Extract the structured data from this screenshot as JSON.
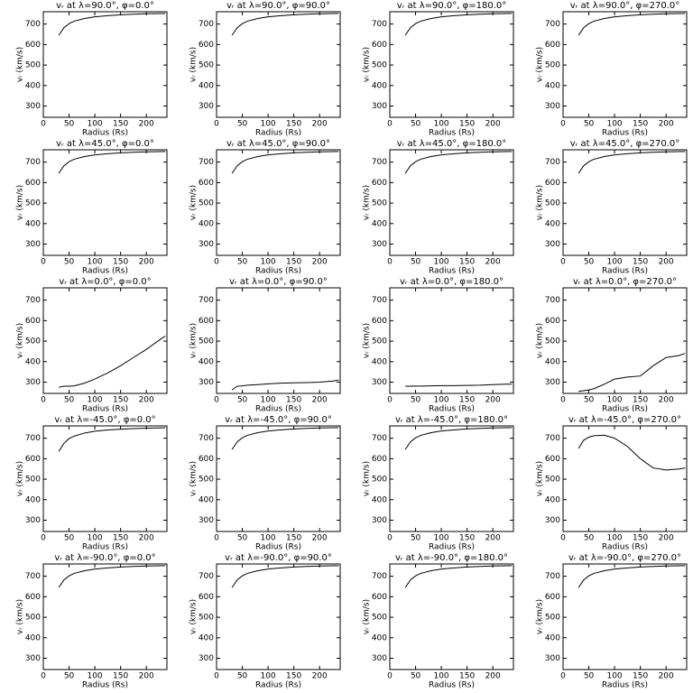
{
  "chart_data": [
    {
      "type": "line",
      "title": "vᵣ at λ=90.0°, φ=0.0°",
      "x_label": "Radius (Rs)",
      "y_label": "vᵣ (km/s)",
      "x": [
        30,
        40,
        50,
        60,
        80,
        100,
        125,
        150,
        175,
        200,
        225,
        237
      ],
      "series": [
        {
          "color": "#000000",
          "values": [
            645,
            682,
            702,
            714,
            727,
            735,
            741,
            745,
            748,
            750,
            751,
            752
          ]
        }
      ],
      "xlim": [
        0,
        240
      ],
      "ylim": [
        245,
        760
      ],
      "xticks": [
        0,
        50,
        100,
        150,
        200
      ],
      "yticks": [
        300,
        400,
        500,
        600,
        700
      ]
    },
    {
      "type": "line",
      "title": "vᵣ at λ=90.0°, φ=90.0°",
      "x_label": "Radius (Rs)",
      "y_label": "vᵣ (km/s)",
      "x": [
        30,
        40,
        50,
        60,
        80,
        100,
        125,
        150,
        175,
        200,
        225,
        237
      ],
      "series": [
        {
          "color": "#000000",
          "values": [
            645,
            682,
            702,
            714,
            727,
            735,
            741,
            745,
            748,
            750,
            751,
            752
          ]
        }
      ],
      "xlim": [
        0,
        240
      ],
      "ylim": [
        245,
        760
      ],
      "xticks": [
        0,
        50,
        100,
        150,
        200
      ],
      "yticks": [
        300,
        400,
        500,
        600,
        700
      ]
    },
    {
      "type": "line",
      "title": "vᵣ at λ=90.0°, φ=180.0°",
      "x_label": "Radius (Rs)",
      "y_label": "vᵣ (km/s)",
      "x": [
        30,
        40,
        50,
        60,
        80,
        100,
        125,
        150,
        175,
        200,
        225,
        237
      ],
      "series": [
        {
          "color": "#000000",
          "values": [
            645,
            682,
            702,
            714,
            727,
            735,
            741,
            745,
            748,
            750,
            751,
            752
          ]
        }
      ],
      "xlim": [
        0,
        240
      ],
      "ylim": [
        245,
        760
      ],
      "xticks": [
        0,
        50,
        100,
        150,
        200
      ],
      "yticks": [
        300,
        400,
        500,
        600,
        700
      ]
    },
    {
      "type": "line",
      "title": "vᵣ at λ=90.0°, φ=270.0°",
      "x_label": "Radius (Rs)",
      "y_label": "vᵣ (km/s)",
      "x": [
        30,
        40,
        50,
        60,
        80,
        100,
        125,
        150,
        175,
        200,
        225,
        237
      ],
      "series": [
        {
          "color": "#000000",
          "values": [
            645,
            682,
            702,
            714,
            727,
            735,
            741,
            745,
            748,
            750,
            751,
            752
          ]
        }
      ],
      "xlim": [
        0,
        240
      ],
      "ylim": [
        245,
        760
      ],
      "xticks": [
        0,
        50,
        100,
        150,
        200
      ],
      "yticks": [
        300,
        400,
        500,
        600,
        700
      ]
    },
    {
      "type": "line",
      "title": "vᵣ at λ=45.0°, φ=0.0°",
      "x_label": "Radius (Rs)",
      "y_label": "vᵣ (km/s)",
      "x": [
        30,
        40,
        50,
        60,
        80,
        100,
        125,
        150,
        175,
        200,
        225,
        237
      ],
      "series": [
        {
          "color": "#000000",
          "values": [
            645,
            682,
            702,
            714,
            727,
            735,
            741,
            745,
            748,
            750,
            751,
            752
          ]
        }
      ],
      "xlim": [
        0,
        240
      ],
      "ylim": [
        245,
        760
      ],
      "xticks": [
        0,
        50,
        100,
        150,
        200
      ],
      "yticks": [
        300,
        400,
        500,
        600,
        700
      ]
    },
    {
      "type": "line",
      "title": "vᵣ at λ=45.0°, φ=90.0°",
      "x_label": "Radius (Rs)",
      "y_label": "vᵣ (km/s)",
      "x": [
        30,
        40,
        50,
        60,
        80,
        100,
        125,
        150,
        175,
        200,
        225,
        237
      ],
      "series": [
        {
          "color": "#000000",
          "values": [
            645,
            682,
            702,
            714,
            727,
            735,
            741,
            745,
            748,
            750,
            751,
            752
          ]
        }
      ],
      "xlim": [
        0,
        240
      ],
      "ylim": [
        245,
        760
      ],
      "xticks": [
        0,
        50,
        100,
        150,
        200
      ],
      "yticks": [
        300,
        400,
        500,
        600,
        700
      ]
    },
    {
      "type": "line",
      "title": "vᵣ at λ=45.0°, φ=180.0°",
      "x_label": "Radius (Rs)",
      "y_label": "vᵣ (km/s)",
      "x": [
        30,
        40,
        50,
        60,
        80,
        100,
        125,
        150,
        175,
        200,
        225,
        237
      ],
      "series": [
        {
          "color": "#000000",
          "values": [
            645,
            682,
            702,
            714,
            727,
            735,
            741,
            745,
            748,
            750,
            751,
            752
          ]
        }
      ],
      "xlim": [
        0,
        240
      ],
      "ylim": [
        245,
        760
      ],
      "xticks": [
        0,
        50,
        100,
        150,
        200
      ],
      "yticks": [
        300,
        400,
        500,
        600,
        700
      ]
    },
    {
      "type": "line",
      "title": "vᵣ at λ=45.0°, φ=270.0°",
      "x_label": "Radius (Rs)",
      "y_label": "vᵣ (km/s)",
      "x": [
        30,
        40,
        50,
        60,
        80,
        100,
        125,
        150,
        175,
        200,
        225,
        237
      ],
      "series": [
        {
          "color": "#000000",
          "values": [
            645,
            682,
            702,
            714,
            727,
            735,
            741,
            745,
            748,
            750,
            751,
            752
          ]
        }
      ],
      "xlim": [
        0,
        240
      ],
      "ylim": [
        245,
        760
      ],
      "xticks": [
        0,
        50,
        100,
        150,
        200
      ],
      "yticks": [
        300,
        400,
        500,
        600,
        700
      ]
    },
    {
      "type": "line",
      "title": "vᵣ at λ=0.0°, φ=0.0°",
      "x_label": "Radius (Rs)",
      "y_label": "vᵣ (km/s)",
      "x": [
        30,
        40,
        50,
        60,
        80,
        100,
        125,
        150,
        175,
        200,
        225,
        237
      ],
      "series": [
        {
          "color": "#000000",
          "values": [
            275,
            280,
            280,
            282,
            295,
            315,
            345,
            380,
            420,
            460,
            505,
            525
          ]
        }
      ],
      "xlim": [
        0,
        240
      ],
      "ylim": [
        245,
        760
      ],
      "xticks": [
        0,
        50,
        100,
        150,
        200
      ],
      "yticks": [
        300,
        400,
        500,
        600,
        700
      ]
    },
    {
      "type": "line",
      "title": "vᵣ at λ=0.0°, φ=90.0°",
      "x_label": "Radius (Rs)",
      "y_label": "vᵣ (km/s)",
      "x": [
        30,
        40,
        50,
        60,
        80,
        100,
        125,
        150,
        175,
        200,
        225,
        237
      ],
      "series": [
        {
          "color": "#000000",
          "values": [
            262,
            280,
            282,
            285,
            288,
            292,
            295,
            297,
            298,
            300,
            305,
            310
          ]
        }
      ],
      "xlim": [
        0,
        240
      ],
      "ylim": [
        245,
        760
      ],
      "xticks": [
        0,
        50,
        100,
        150,
        200
      ],
      "yticks": [
        300,
        400,
        500,
        600,
        700
      ]
    },
    {
      "type": "line",
      "title": "vᵣ at λ=0.0°, φ=180.0°",
      "x_label": "Radius (Rs)",
      "y_label": "vᵣ (km/s)",
      "x": [
        30,
        40,
        50,
        60,
        80,
        100,
        125,
        150,
        175,
        200,
        225,
        237
      ],
      "series": [
        {
          "color": "#000000",
          "values": [
            280,
            280,
            281,
            281,
            282,
            283,
            283,
            284,
            285,
            288,
            290,
            290
          ]
        }
      ],
      "xlim": [
        0,
        240
      ],
      "ylim": [
        245,
        760
      ],
      "xticks": [
        0,
        50,
        100,
        150,
        200
      ],
      "yticks": [
        300,
        400,
        500,
        600,
        700
      ]
    },
    {
      "type": "line",
      "title": "vᵣ at λ=0.0°, φ=270.0°",
      "x_label": "Radius (Rs)",
      "y_label": "vᵣ (km/s)",
      "x": [
        30,
        40,
        50,
        60,
        80,
        100,
        125,
        150,
        175,
        200,
        225,
        237
      ],
      "series": [
        {
          "color": "#000000",
          "values": [
            255,
            258,
            262,
            268,
            290,
            315,
            325,
            330,
            380,
            420,
            430,
            440
          ]
        }
      ],
      "xlim": [
        0,
        240
      ],
      "ylim": [
        245,
        760
      ],
      "xticks": [
        0,
        50,
        100,
        150,
        200
      ],
      "yticks": [
        300,
        400,
        500,
        600,
        700
      ]
    },
    {
      "type": "line",
      "title": "vᵣ at λ=-45.0°, φ=0.0°",
      "x_label": "Radius (Rs)",
      "y_label": "vᵣ (km/s)",
      "x": [
        30,
        40,
        50,
        60,
        80,
        100,
        125,
        150,
        175,
        200,
        225,
        237
      ],
      "series": [
        {
          "color": "#000000",
          "values": [
            635,
            675,
            698,
            710,
            725,
            734,
            740,
            744,
            747,
            749,
            750,
            751
          ]
        }
      ],
      "xlim": [
        0,
        240
      ],
      "ylim": [
        245,
        760
      ],
      "xticks": [
        0,
        50,
        100,
        150,
        200
      ],
      "yticks": [
        300,
        400,
        500,
        600,
        700
      ]
    },
    {
      "type": "line",
      "title": "vᵣ at λ=-45.0°, φ=90.0°",
      "x_label": "Radius (Rs)",
      "y_label": "vᵣ (km/s)",
      "x": [
        30,
        40,
        50,
        60,
        80,
        100,
        125,
        150,
        175,
        200,
        225,
        237
      ],
      "series": [
        {
          "color": "#000000",
          "values": [
            645,
            682,
            702,
            714,
            727,
            735,
            741,
            745,
            748,
            750,
            751,
            752
          ]
        }
      ],
      "xlim": [
        0,
        240
      ],
      "ylim": [
        245,
        760
      ],
      "xticks": [
        0,
        50,
        100,
        150,
        200
      ],
      "yticks": [
        300,
        400,
        500,
        600,
        700
      ]
    },
    {
      "type": "line",
      "title": "vᵣ at λ=-45.0°, φ=180.0°",
      "x_label": "Radius (Rs)",
      "y_label": "vᵣ (km/s)",
      "x": [
        30,
        40,
        50,
        60,
        80,
        100,
        125,
        150,
        175,
        200,
        225,
        237
      ],
      "series": [
        {
          "color": "#000000",
          "values": [
            645,
            682,
            702,
            714,
            727,
            735,
            741,
            745,
            748,
            750,
            751,
            752
          ]
        }
      ],
      "xlim": [
        0,
        240
      ],
      "ylim": [
        245,
        760
      ],
      "xticks": [
        0,
        50,
        100,
        150,
        200
      ],
      "yticks": [
        300,
        400,
        500,
        600,
        700
      ]
    },
    {
      "type": "line",
      "title": "vᵣ at λ=-45.0°, φ=270.0°",
      "x_label": "Radius (Rs)",
      "y_label": "vᵣ (km/s)",
      "x": [
        30,
        40,
        50,
        60,
        80,
        100,
        125,
        150,
        175,
        200,
        225,
        237
      ],
      "series": [
        {
          "color": "#000000",
          "values": [
            650,
            690,
            705,
            712,
            715,
            700,
            660,
            600,
            555,
            545,
            550,
            555
          ]
        }
      ],
      "xlim": [
        0,
        240
      ],
      "ylim": [
        245,
        760
      ],
      "xticks": [
        0,
        50,
        100,
        150,
        200
      ],
      "yticks": [
        300,
        400,
        500,
        600,
        700
      ]
    },
    {
      "type": "line",
      "title": "vᵣ at λ=-90.0°, φ=0.0°",
      "x_label": "Radius (Rs)",
      "y_label": "vᵣ (km/s)",
      "x": [
        30,
        40,
        50,
        60,
        80,
        100,
        125,
        150,
        175,
        200,
        225,
        237
      ],
      "series": [
        {
          "color": "#000000",
          "values": [
            645,
            682,
            702,
            714,
            727,
            735,
            741,
            745,
            748,
            750,
            751,
            752
          ]
        }
      ],
      "xlim": [
        0,
        240
      ],
      "ylim": [
        245,
        760
      ],
      "xticks": [
        0,
        50,
        100,
        150,
        200
      ],
      "yticks": [
        300,
        400,
        500,
        600,
        700
      ]
    },
    {
      "type": "line",
      "title": "vᵣ at λ=-90.0°, φ=90.0°",
      "x_label": "Radius (Rs)",
      "y_label": "vᵣ (km/s)",
      "x": [
        30,
        40,
        50,
        60,
        80,
        100,
        125,
        150,
        175,
        200,
        225,
        237
      ],
      "series": [
        {
          "color": "#000000",
          "values": [
            645,
            682,
            702,
            714,
            727,
            735,
            741,
            745,
            748,
            750,
            751,
            752
          ]
        }
      ],
      "xlim": [
        0,
        240
      ],
      "ylim": [
        245,
        760
      ],
      "xticks": [
        0,
        50,
        100,
        150,
        200
      ],
      "yticks": [
        300,
        400,
        500,
        600,
        700
      ]
    },
    {
      "type": "line",
      "title": "vᵣ at λ=-90.0°, φ=180.0°",
      "x_label": "Radius (Rs)",
      "y_label": "vᵣ (km/s)",
      "x": [
        30,
        40,
        50,
        60,
        80,
        100,
        125,
        150,
        175,
        200,
        225,
        237
      ],
      "series": [
        {
          "color": "#000000",
          "values": [
            645,
            682,
            702,
            714,
            727,
            735,
            741,
            745,
            748,
            750,
            751,
            752
          ]
        }
      ],
      "xlim": [
        0,
        240
      ],
      "ylim": [
        245,
        760
      ],
      "xticks": [
        0,
        50,
        100,
        150,
        200
      ],
      "yticks": [
        300,
        400,
        500,
        600,
        700
      ]
    },
    {
      "type": "line",
      "title": "vᵣ at λ=-90.0°, φ=270.0°",
      "x_label": "Radius (Rs)",
      "y_label": "vᵣ (km/s)",
      "x": [
        30,
        40,
        50,
        60,
        80,
        100,
        125,
        150,
        175,
        200,
        225,
        237
      ],
      "series": [
        {
          "color": "#000000",
          "values": [
            645,
            682,
            702,
            714,
            727,
            735,
            741,
            745,
            748,
            750,
            751,
            752
          ]
        }
      ],
      "xlim": [
        0,
        240
      ],
      "ylim": [
        245,
        760
      ],
      "xticks": [
        0,
        50,
        100,
        150,
        200
      ],
      "yticks": [
        300,
        400,
        500,
        600,
        700
      ]
    }
  ]
}
